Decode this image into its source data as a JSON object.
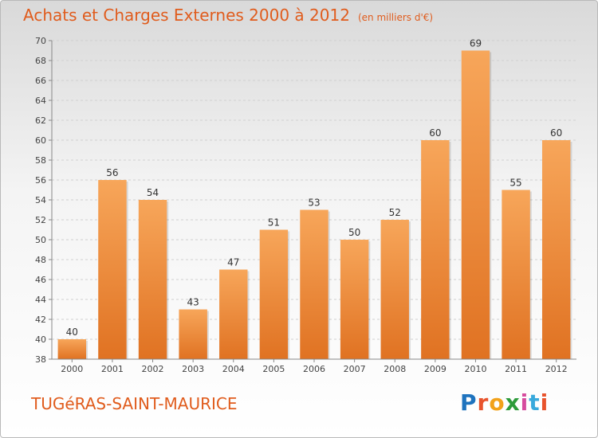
{
  "header": {
    "title": "Achats et Charges Externes 2000 à 2012",
    "subtitle": "(en milliers d'€)"
  },
  "commune": "TUGéRAS-SAINT-MAURICE",
  "logo": {
    "letters": [
      "P",
      "r",
      "o",
      "x",
      "i",
      "t",
      "i"
    ],
    "colors": [
      "#1e73be",
      "#e8532c",
      "#f2a21b",
      "#2d9b3a",
      "#d64b9e",
      "#39a9dc",
      "#e8532c"
    ]
  },
  "colors": {
    "accent": "#e05c1d",
    "bar_light": "#f7a65a",
    "bar_dark": "#e07222"
  },
  "chart_data": {
    "type": "bar",
    "categories": [
      "2000",
      "2001",
      "2002",
      "2003",
      "2004",
      "2005",
      "2006",
      "2007",
      "2008",
      "2009",
      "2010",
      "2011",
      "2012"
    ],
    "values": [
      40,
      56,
      54,
      43,
      47,
      51,
      53,
      50,
      52,
      60,
      69,
      55,
      60
    ],
    "data_labels": [
      "40",
      "56",
      "54",
      "43",
      "47",
      "51",
      "53",
      "50",
      "52",
      "60",
      "69",
      "55",
      "60"
    ],
    "title": "Achats et Charges Externes 2000 à 2012",
    "subtitle": "(en milliers d'€)",
    "ylim": [
      38,
      70
    ],
    "yticks": [
      38,
      40,
      42,
      44,
      46,
      48,
      50,
      52,
      54,
      56,
      58,
      60,
      62,
      64,
      66,
      68,
      70
    ],
    "grid": true
  }
}
